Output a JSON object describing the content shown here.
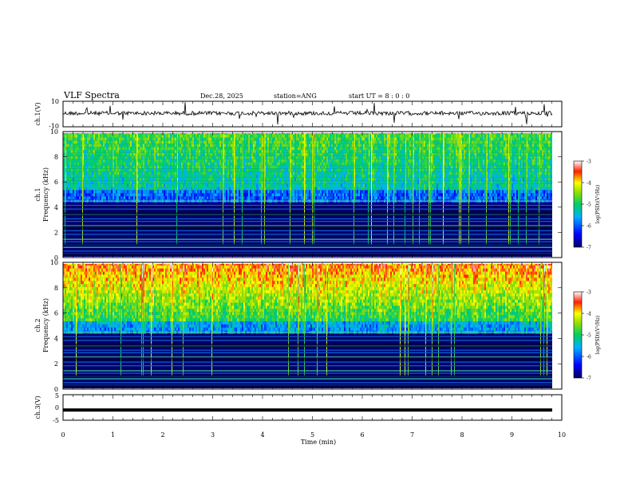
{
  "header": {
    "title": "VLF Spectra",
    "date": "Dec.28, 2025",
    "station": "station=ANG",
    "start_ut": "start UT =  8 : 0  : 0"
  },
  "chart_data": [
    {
      "type": "line",
      "id": "ch1-waveform",
      "ylabel": "ch.1(V)",
      "ylim": [
        -10,
        10
      ],
      "y_ticks": [
        "10",
        "-10"
      ],
      "xlim": [
        0,
        10
      ],
      "description_values": "noisy waveform near 0 V with sporadic spikes"
    },
    {
      "type": "heatmap",
      "id": "ch1-spectrogram",
      "ylabel_line1": "ch.1",
      "ylabel_line2": "Frequency (kHz)",
      "ylim": [
        0,
        10
      ],
      "y_ticks": [
        "0",
        "2",
        "4",
        "6",
        "8",
        "10"
      ],
      "xlim": [
        0,
        10
      ],
      "colorbar": {
        "label": "log(PSD)(V²/Hz)",
        "range": [
          -7,
          -3
        ],
        "ticks": [
          "-3",
          "-4",
          "-5",
          "-6",
          "-7"
        ]
      }
    },
    {
      "type": "heatmap",
      "id": "ch2-spectrogram",
      "ylabel_line1": "ch.2",
      "ylabel_line2": "Frequency (kHz)",
      "ylim": [
        0,
        10
      ],
      "y_ticks": [
        "0",
        "2",
        "4",
        "6",
        "8",
        "10"
      ],
      "xlim": [
        0,
        10
      ],
      "colorbar": {
        "label": "log(PSD)(V²/Hz)",
        "range": [
          -7,
          -3
        ],
        "ticks": [
          "-3",
          "-4",
          "-5",
          "-6",
          "-7"
        ]
      }
    },
    {
      "type": "line",
      "id": "ch3-waveform",
      "ylabel": "ch.3(V)",
      "ylim": [
        -5,
        5
      ],
      "y_ticks": [
        "5",
        "0",
        "-5"
      ],
      "xlim": [
        0,
        10
      ],
      "values": [
        -1,
        -1
      ]
    }
  ],
  "x_axis": {
    "label": "Time (min)",
    "ticks": [
      "0",
      "1",
      "2",
      "3",
      "4",
      "5",
      "6",
      "7",
      "8",
      "9",
      "10"
    ]
  },
  "colors": {
    "low": "#000080",
    "mid": "#00c850",
    "high": "#ff0000"
  }
}
